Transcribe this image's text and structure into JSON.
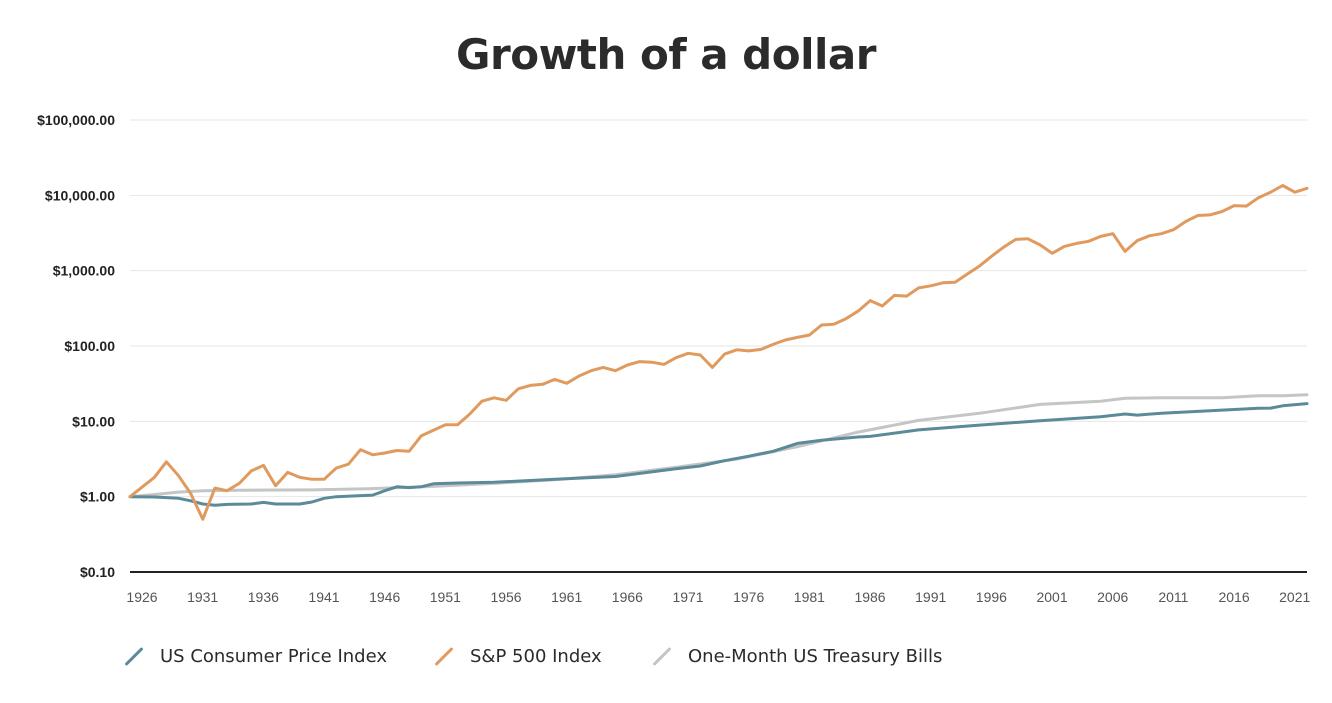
{
  "chart_data": {
    "type": "line",
    "title": "Growth of a dollar",
    "y_scale": "log",
    "ylim": [
      0.1,
      100000
    ],
    "xlim": [
      1926,
      2023
    ],
    "grid": true,
    "legend_position": "bottom-left",
    "y_ticks": [
      {
        "value": 100000,
        "label": "$100,000.00"
      },
      {
        "value": 10000,
        "label": "$10,000.00"
      },
      {
        "value": 1000,
        "label": "$1,000.00"
      },
      {
        "value": 100,
        "label": "$100.00"
      },
      {
        "value": 10,
        "label": "$10.00"
      },
      {
        "value": 1,
        "label": "$1.00"
      },
      {
        "value": 0.1,
        "label": "$0.10"
      }
    ],
    "x_ticks": [
      1926,
      1931,
      1936,
      1941,
      1946,
      1951,
      1956,
      1961,
      1966,
      1971,
      1976,
      1981,
      1986,
      1991,
      1996,
      2001,
      2006,
      2011,
      2016,
      2021
    ],
    "series": [
      {
        "name": "US Consumer Price Index",
        "color": "#5b8a99",
        "x": [
          1926,
          1928,
          1930,
          1931,
          1932,
          1933,
          1934,
          1936,
          1937,
          1938,
          1940,
          1941,
          1942,
          1943,
          1946,
          1947,
          1948,
          1949,
          1950,
          1951,
          1953,
          1956,
          1961,
          1966,
          1971,
          1973,
          1975,
          1977,
          1979,
          1981,
          1983,
          1986,
          1987,
          1991,
          1996,
          2001,
          2006,
          2008,
          2009,
          2011,
          2016,
          2019,
          2020,
          2021,
          2023
        ],
        "y": [
          1.0,
          0.99,
          0.95,
          0.88,
          0.8,
          0.77,
          0.79,
          0.8,
          0.84,
          0.8,
          0.8,
          0.85,
          0.95,
          1.0,
          1.05,
          1.2,
          1.35,
          1.32,
          1.35,
          1.48,
          1.52,
          1.55,
          1.7,
          1.85,
          2.35,
          2.55,
          3.0,
          3.45,
          4.0,
          5.1,
          5.6,
          6.2,
          6.3,
          7.7,
          8.9,
          10.2,
          11.5,
          12.5,
          12.1,
          12.8,
          14.1,
          14.9,
          15.0,
          16.1,
          17.2
        ]
      },
      {
        "name": "S&P 500 Index",
        "color": "#e09a5e",
        "x": [
          1926,
          1928,
          1929,
          1930,
          1931,
          1932,
          1933,
          1934,
          1935,
          1936,
          1937,
          1938,
          1939,
          1940,
          1941,
          1942,
          1943,
          1944,
          1945,
          1946,
          1947,
          1948,
          1949,
          1950,
          1951,
          1952,
          1953,
          1954,
          1955,
          1956,
          1957,
          1958,
          1959,
          1960,
          1961,
          1962,
          1963,
          1964,
          1965,
          1966,
          1967,
          1968,
          1969,
          1970,
          1971,
          1972,
          1973,
          1974,
          1975,
          1976,
          1977,
          1978,
          1979,
          1980,
          1981,
          1982,
          1983,
          1984,
          1985,
          1986,
          1987,
          1988,
          1989,
          1990,
          1991,
          1992,
          1993,
          1994,
          1995,
          1996,
          1997,
          1998,
          1999,
          2000,
          2001,
          2002,
          2003,
          2004,
          2005,
          2006,
          2007,
          2008,
          2009,
          2010,
          2011,
          2012,
          2013,
          2014,
          2015,
          2016,
          2017,
          2018,
          2019,
          2020,
          2021,
          2022,
          2023
        ],
        "y": [
          1.0,
          1.8,
          2.9,
          1.9,
          1.1,
          0.5,
          1.3,
          1.2,
          1.5,
          2.2,
          2.6,
          1.4,
          2.1,
          1.8,
          1.7,
          1.7,
          2.4,
          2.7,
          4.2,
          3.6,
          3.8,
          4.1,
          4.0,
          6.4,
          7.6,
          9.0,
          9.0,
          12.5,
          18.5,
          20.5,
          19.0,
          27.0,
          30.0,
          31.0,
          36.0,
          32.0,
          40.0,
          47.0,
          52.0,
          47.0,
          56.0,
          62.0,
          61.0,
          57.0,
          70.0,
          80.0,
          76.0,
          52.0,
          78.0,
          89.0,
          86.0,
          90.0,
          105.0,
          120.0,
          130.0,
          140.0,
          190.0,
          195.0,
          230.0,
          290.0,
          400.0,
          340.0,
          470.0,
          460.0,
          590.0,
          630.0,
          690.0,
          700.0,
          900.0,
          1150.0,
          1550.0,
          2050.0,
          2600.0,
          2650.0,
          2200.0,
          1700.0,
          2100.0,
          2300.0,
          2450.0,
          2850.0,
          3100.0,
          1800.0,
          2500.0,
          2900.0,
          3100.0,
          3500.0,
          4500.0,
          5400.0,
          5500.0,
          6100.0,
          7300.0,
          7200.0,
          9300.0,
          11000.0,
          13500.0,
          11000.0,
          12400.0
        ]
      },
      {
        "name": "One-Month US Treasury Bills",
        "color": "#c4c6c5",
        "x": [
          1926,
          1928,
          1930,
          1932,
          1935,
          1941,
          1946,
          1951,
          1956,
          1961,
          1966,
          1971,
          1976,
          1981,
          1986,
          1991,
          1996,
          2001,
          2006,
          2008,
          2011,
          2016,
          2019,
          2021,
          2023
        ],
        "y": [
          1.0,
          1.07,
          1.15,
          1.2,
          1.22,
          1.23,
          1.28,
          1.37,
          1.5,
          1.68,
          1.95,
          2.45,
          3.15,
          4.6,
          7.2,
          10.3,
          12.8,
          16.8,
          18.5,
          20.3,
          20.5,
          20.6,
          21.8,
          21.9,
          22.5
        ]
      }
    ]
  }
}
